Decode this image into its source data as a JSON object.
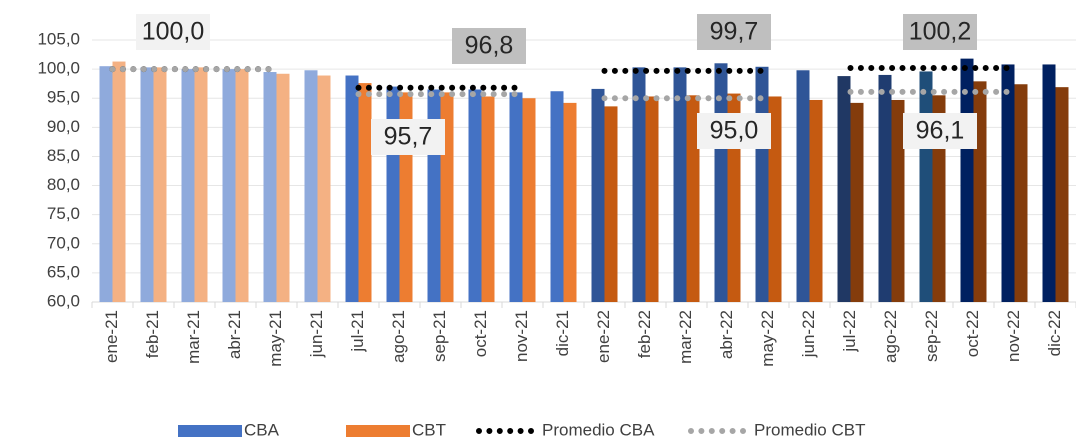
{
  "chart_data": {
    "type": "bar",
    "categories": [
      "ene-21",
      "feb-21",
      "mar-21",
      "abr-21",
      "may-21",
      "jun-21",
      "jul-21",
      "ago-21",
      "sep-21",
      "oct-21",
      "nov-21",
      "dic-21",
      "ene-22",
      "feb-22",
      "mar-22",
      "abr-22",
      "may-22",
      "jun-22",
      "jul-22",
      "ago-22",
      "sep-22",
      "oct-22",
      "nov-22",
      "dic-22"
    ],
    "series": [
      {
        "name": "CBA",
        "kind": "bar",
        "color": "#4472c4",
        "values": [
          100.5,
          100.3,
          100.0,
          100.0,
          99.5,
          99.8,
          98.9,
          97.0,
          96.5,
          96.5,
          96.0,
          96.2,
          96.6,
          100.3,
          100.3,
          101.0,
          100.4,
          99.8,
          98.8,
          99.0,
          99.6,
          101.8,
          100.8,
          100.8
        ],
        "bar_colors": [
          "#8faadc",
          "#8faadc",
          "#8faadc",
          "#8faadc",
          "#8faadc",
          "#8faadc",
          "#4472c4",
          "#4472c4",
          "#4472c4",
          "#4472c4",
          "#4472c4",
          "#4472c4",
          "#2f5597",
          "#2f5597",
          "#2f5597",
          "#2f5597",
          "#2f5597",
          "#2f5597",
          "#203864",
          "#1f3c70",
          "#1f4e79",
          "#002060",
          "#002060",
          "#002060"
        ]
      },
      {
        "name": "CBT",
        "kind": "bar",
        "color": "#ed7d31",
        "values": [
          101.3,
          100.3,
          100.3,
          100.0,
          99.2,
          98.9,
          97.6,
          96.0,
          96.0,
          95.3,
          95.0,
          94.2,
          93.6,
          95.3,
          95.5,
          95.8,
          95.3,
          94.7,
          94.2,
          94.7,
          95.5,
          97.9,
          97.4,
          96.9
        ],
        "bar_colors": [
          "#f4b183",
          "#f4b183",
          "#f4b183",
          "#f4b183",
          "#f4b183",
          "#f4b183",
          "#ed7d31",
          "#ed7d31",
          "#ed7d31",
          "#ed7d31",
          "#ed7d31",
          "#ed7d31",
          "#c55a11",
          "#c55a11",
          "#c55a11",
          "#c55a11",
          "#c55a11",
          "#c55a11",
          "#843c0c",
          "#843c0c",
          "#843c0c",
          "#843c0c",
          "#843c0c",
          "#843c0c"
        ]
      },
      {
        "name": "Promedio CBA",
        "kind": "dots",
        "color": "#000000",
        "values": [
          100.0,
          100.0,
          100.0,
          100.0,
          100.0,
          null,
          96.8,
          96.8,
          96.8,
          96.8,
          96.8,
          null,
          99.7,
          99.7,
          99.7,
          99.7,
          99.7,
          null,
          100.2,
          100.2,
          100.2,
          100.2,
          100.2,
          null
        ]
      },
      {
        "name": "Promedio CBT",
        "kind": "dots",
        "color": "#a6a6a6",
        "values": [
          100.0,
          100.0,
          100.0,
          100.0,
          100.0,
          null,
          95.7,
          95.7,
          95.7,
          95.7,
          95.7,
          null,
          95.0,
          95.0,
          95.0,
          95.0,
          95.0,
          null,
          96.1,
          96.1,
          96.1,
          96.1,
          96.1,
          null
        ]
      }
    ],
    "annotations": [
      "100,0",
      "96,8",
      "95,7",
      "99,7",
      "95,0",
      "100,2",
      "96,1"
    ],
    "ylim": [
      60,
      110
    ],
    "yticks": [
      {
        "value": 60,
        "label": "60,0"
      },
      {
        "value": 65,
        "label": "65,0"
      },
      {
        "value": 70,
        "label": "70,0"
      },
      {
        "value": 75,
        "label": "75,0"
      },
      {
        "value": 80,
        "label": "80,0"
      },
      {
        "value": 85,
        "label": "85,0"
      },
      {
        "value": 90,
        "label": "90,0"
      },
      {
        "value": 95,
        "label": "95,0"
      },
      {
        "value": 100,
        "label": "100,0"
      },
      {
        "value": 105,
        "label": "105,0"
      }
    ],
    "grid": true,
    "legend": "bottom"
  }
}
